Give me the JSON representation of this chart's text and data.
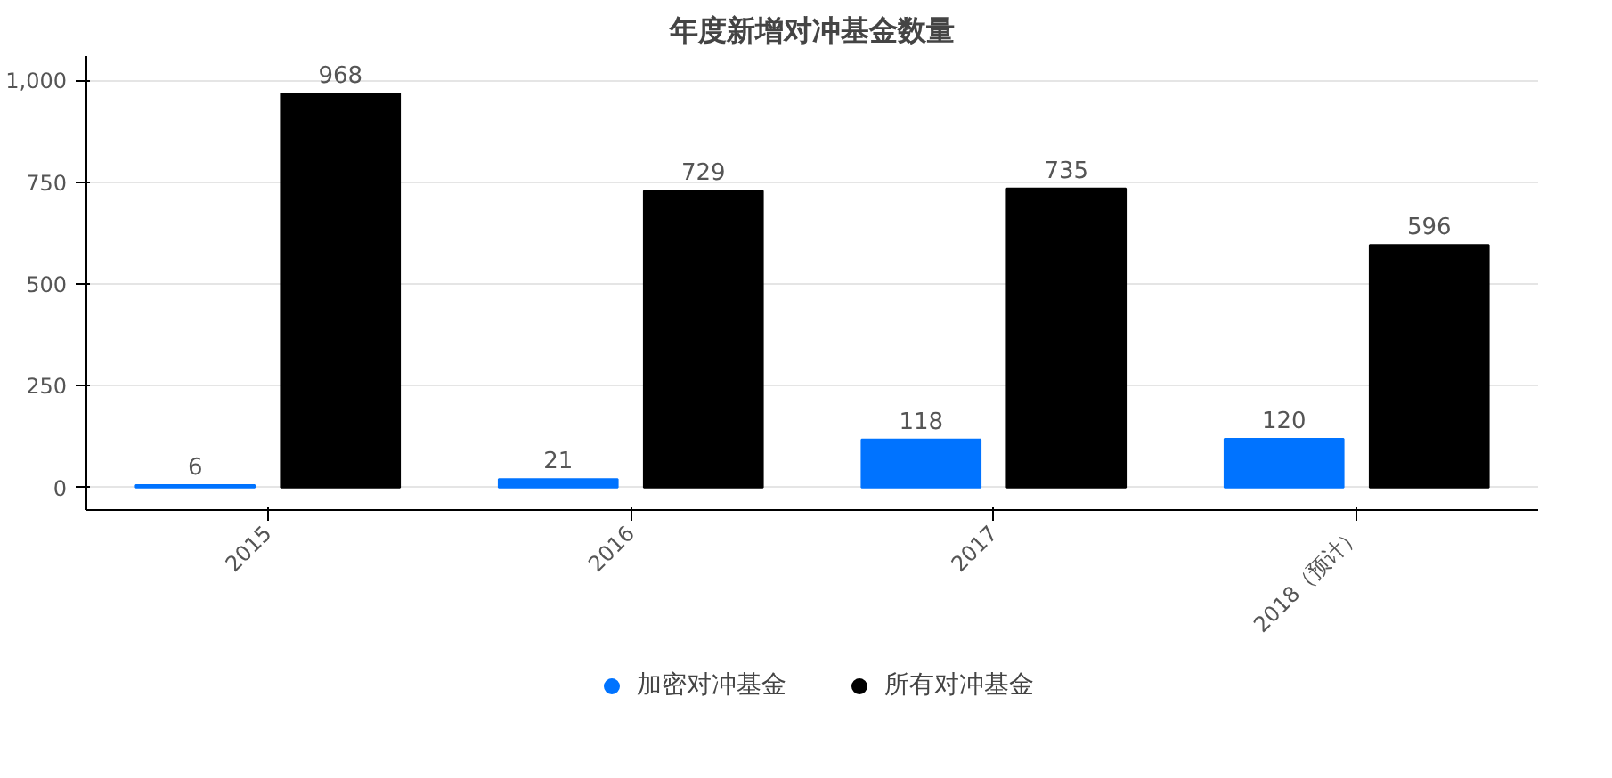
{
  "chart_data": {
    "type": "bar",
    "title": "年度新增对冲基金数量",
    "categories": [
      "2015",
      "2016",
      "2017",
      "2018（预计）"
    ],
    "series": [
      {
        "name": "加密对冲基金",
        "color": "#0073ff",
        "values": [
          6,
          21,
          118,
          120
        ]
      },
      {
        "name": "所有对冲基金",
        "color": "#000000",
        "values": [
          968,
          729,
          735,
          596
        ]
      }
    ],
    "ylim": [
      -55,
      1060
    ],
    "yticks": [
      0,
      250,
      500,
      750,
      {
        "value": 1000,
        "label": "1,000"
      }
    ],
    "grid": "y",
    "legend": "bottom",
    "marker": "circle",
    "data_labels": true
  }
}
